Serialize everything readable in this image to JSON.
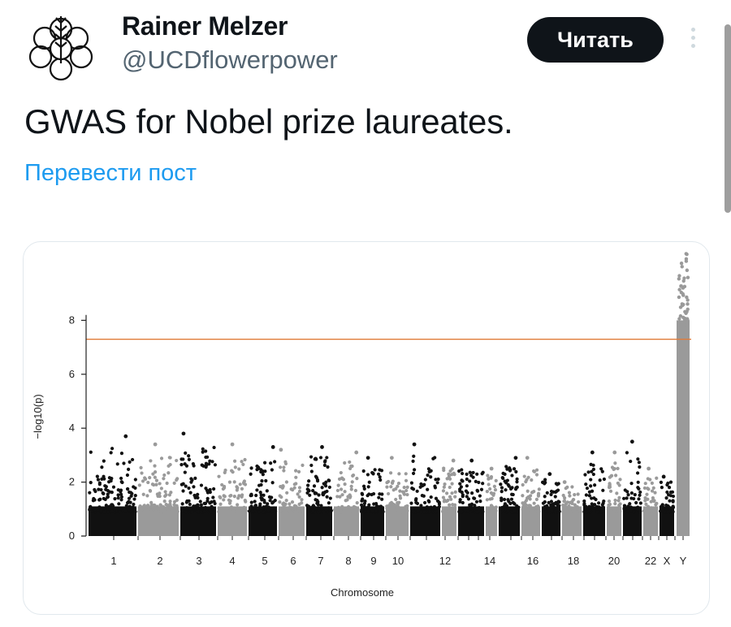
{
  "author": {
    "name": "Rainer Melzer",
    "handle": "@UCDflowerpower",
    "avatar_icon": "wheat-flower-logo-icon"
  },
  "follow_button": {
    "label": "Читать"
  },
  "more_button": {
    "icon": "vertical-dots-icon"
  },
  "tweet": {
    "text": "GWAS for Nobel prize laureates.",
    "translate_label": "Перевести пост"
  },
  "colors": {
    "text": "#0f1419",
    "secondary": "#536471",
    "link": "#1d9bf0",
    "button_bg": "#0f1419",
    "threshold_line": "#e07b39",
    "point_dark": "#111111",
    "point_light": "#9a9a9a"
  },
  "chart_data": {
    "type": "scatter",
    "subtype": "manhattan",
    "title": "",
    "xlabel": "Chromosome",
    "ylabel": "−log10(p)",
    "ylim": [
      0,
      10
    ],
    "yticks": [
      0,
      2,
      4,
      6,
      8
    ],
    "threshold": 7.3,
    "legend": "none",
    "grid": false,
    "chromosome_tick_labels": [
      "1",
      "2",
      "3",
      "4",
      "5",
      "6",
      "7",
      "8",
      "9",
      "10",
      "12",
      "14",
      "16",
      "18",
      "20",
      "22",
      "X",
      "Y"
    ],
    "chromosomes": [
      {
        "chr": "1",
        "max": 3.7,
        "shade": "dark"
      },
      {
        "chr": "2",
        "max": 3.4,
        "shade": "light"
      },
      {
        "chr": "3",
        "max": 3.8,
        "shade": "dark"
      },
      {
        "chr": "4",
        "max": 3.4,
        "shade": "light"
      },
      {
        "chr": "5",
        "max": 3.3,
        "shade": "dark"
      },
      {
        "chr": "6",
        "max": 3.2,
        "shade": "light"
      },
      {
        "chr": "7",
        "max": 3.3,
        "shade": "dark"
      },
      {
        "chr": "8",
        "max": 3.1,
        "shade": "light"
      },
      {
        "chr": "9",
        "max": 2.9,
        "shade": "dark"
      },
      {
        "chr": "10",
        "max": 2.9,
        "shade": "light"
      },
      {
        "chr": "11",
        "max": 3.4,
        "shade": "dark"
      },
      {
        "chr": "12",
        "max": 2.8,
        "shade": "light"
      },
      {
        "chr": "13",
        "max": 2.8,
        "shade": "dark"
      },
      {
        "chr": "14",
        "max": 2.5,
        "shade": "light"
      },
      {
        "chr": "15",
        "max": 2.9,
        "shade": "dark"
      },
      {
        "chr": "16",
        "max": 2.9,
        "shade": "light"
      },
      {
        "chr": "17",
        "max": 2.3,
        "shade": "dark"
      },
      {
        "chr": "18",
        "max": 2.0,
        "shade": "light"
      },
      {
        "chr": "19",
        "max": 3.1,
        "shade": "dark"
      },
      {
        "chr": "20",
        "max": 3.1,
        "shade": "light"
      },
      {
        "chr": "21",
        "max": 3.5,
        "shade": "dark"
      },
      {
        "chr": "22",
        "max": 2.5,
        "shade": "light"
      },
      {
        "chr": "X",
        "max": 2.2,
        "shade": "dark"
      },
      {
        "chr": "Y",
        "max": 10.5,
        "shade": "light"
      }
    ]
  }
}
